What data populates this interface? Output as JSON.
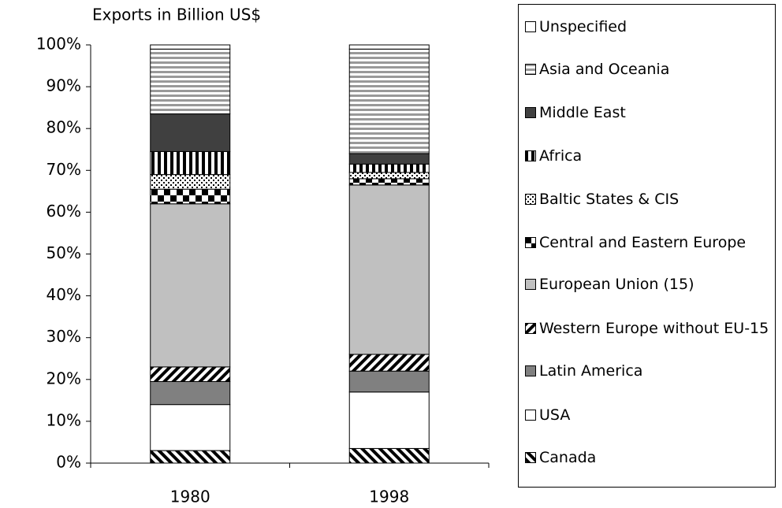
{
  "chart_data": {
    "type": "stacked-bar",
    "title": "Exports in Billion US$",
    "categories": [
      "1980",
      "1998"
    ],
    "series": [
      {
        "name": "Canada",
        "color": "#ffffff",
        "values": [
          3,
          3.5
        ]
      },
      {
        "name": "USA",
        "color": "#ffffff",
        "values": [
          11,
          13.5
        ]
      },
      {
        "name": "Latin America",
        "color": "#808080",
        "values": [
          5.5,
          5
        ]
      },
      {
        "name": "Western Europe without EU-15",
        "color": "#ffffff",
        "values": [
          3.5,
          4
        ]
      },
      {
        "name": "European Union (15)",
        "color": "#c0c0c0",
        "values": [
          39,
          40.5
        ]
      },
      {
        "name": "Central  and Eastern Europe",
        "color": "#ffffff",
        "values": [
          3.5,
          1.5
        ]
      },
      {
        "name": "Baltic States & CIS",
        "color": "#ffffff",
        "values": [
          3.5,
          1.5
        ]
      },
      {
        "name": "Africa",
        "color": "#ffffff",
        "values": [
          5.5,
          2
        ]
      },
      {
        "name": "Middle East",
        "color": "#404040",
        "values": [
          9,
          2.5
        ]
      },
      {
        "name": "Asia and Oceania",
        "color": "#a0a0a0",
        "values": [
          15.5,
          25
        ]
      },
      {
        "name": "Unspecified",
        "color": "#ffffff",
        "values": [
          1,
          1
        ]
      }
    ],
    "ylim": [
      0,
      100
    ],
    "yticks": [
      {
        "value": 0,
        "label": "0%"
      },
      {
        "value": 10,
        "label": "10%"
      },
      {
        "value": 20,
        "label": "20%"
      },
      {
        "value": 30,
        "label": "30%"
      },
      {
        "value": 40,
        "label": "40%"
      },
      {
        "value": 50,
        "label": "50%"
      },
      {
        "value": 60,
        "label": "60%"
      },
      {
        "value": 70,
        "label": "70%"
      },
      {
        "value": 80,
        "label": "80%"
      },
      {
        "value": 90,
        "label": "90%"
      },
      {
        "value": 100,
        "label": "100%"
      }
    ],
    "grid": false,
    "legend": "right"
  }
}
